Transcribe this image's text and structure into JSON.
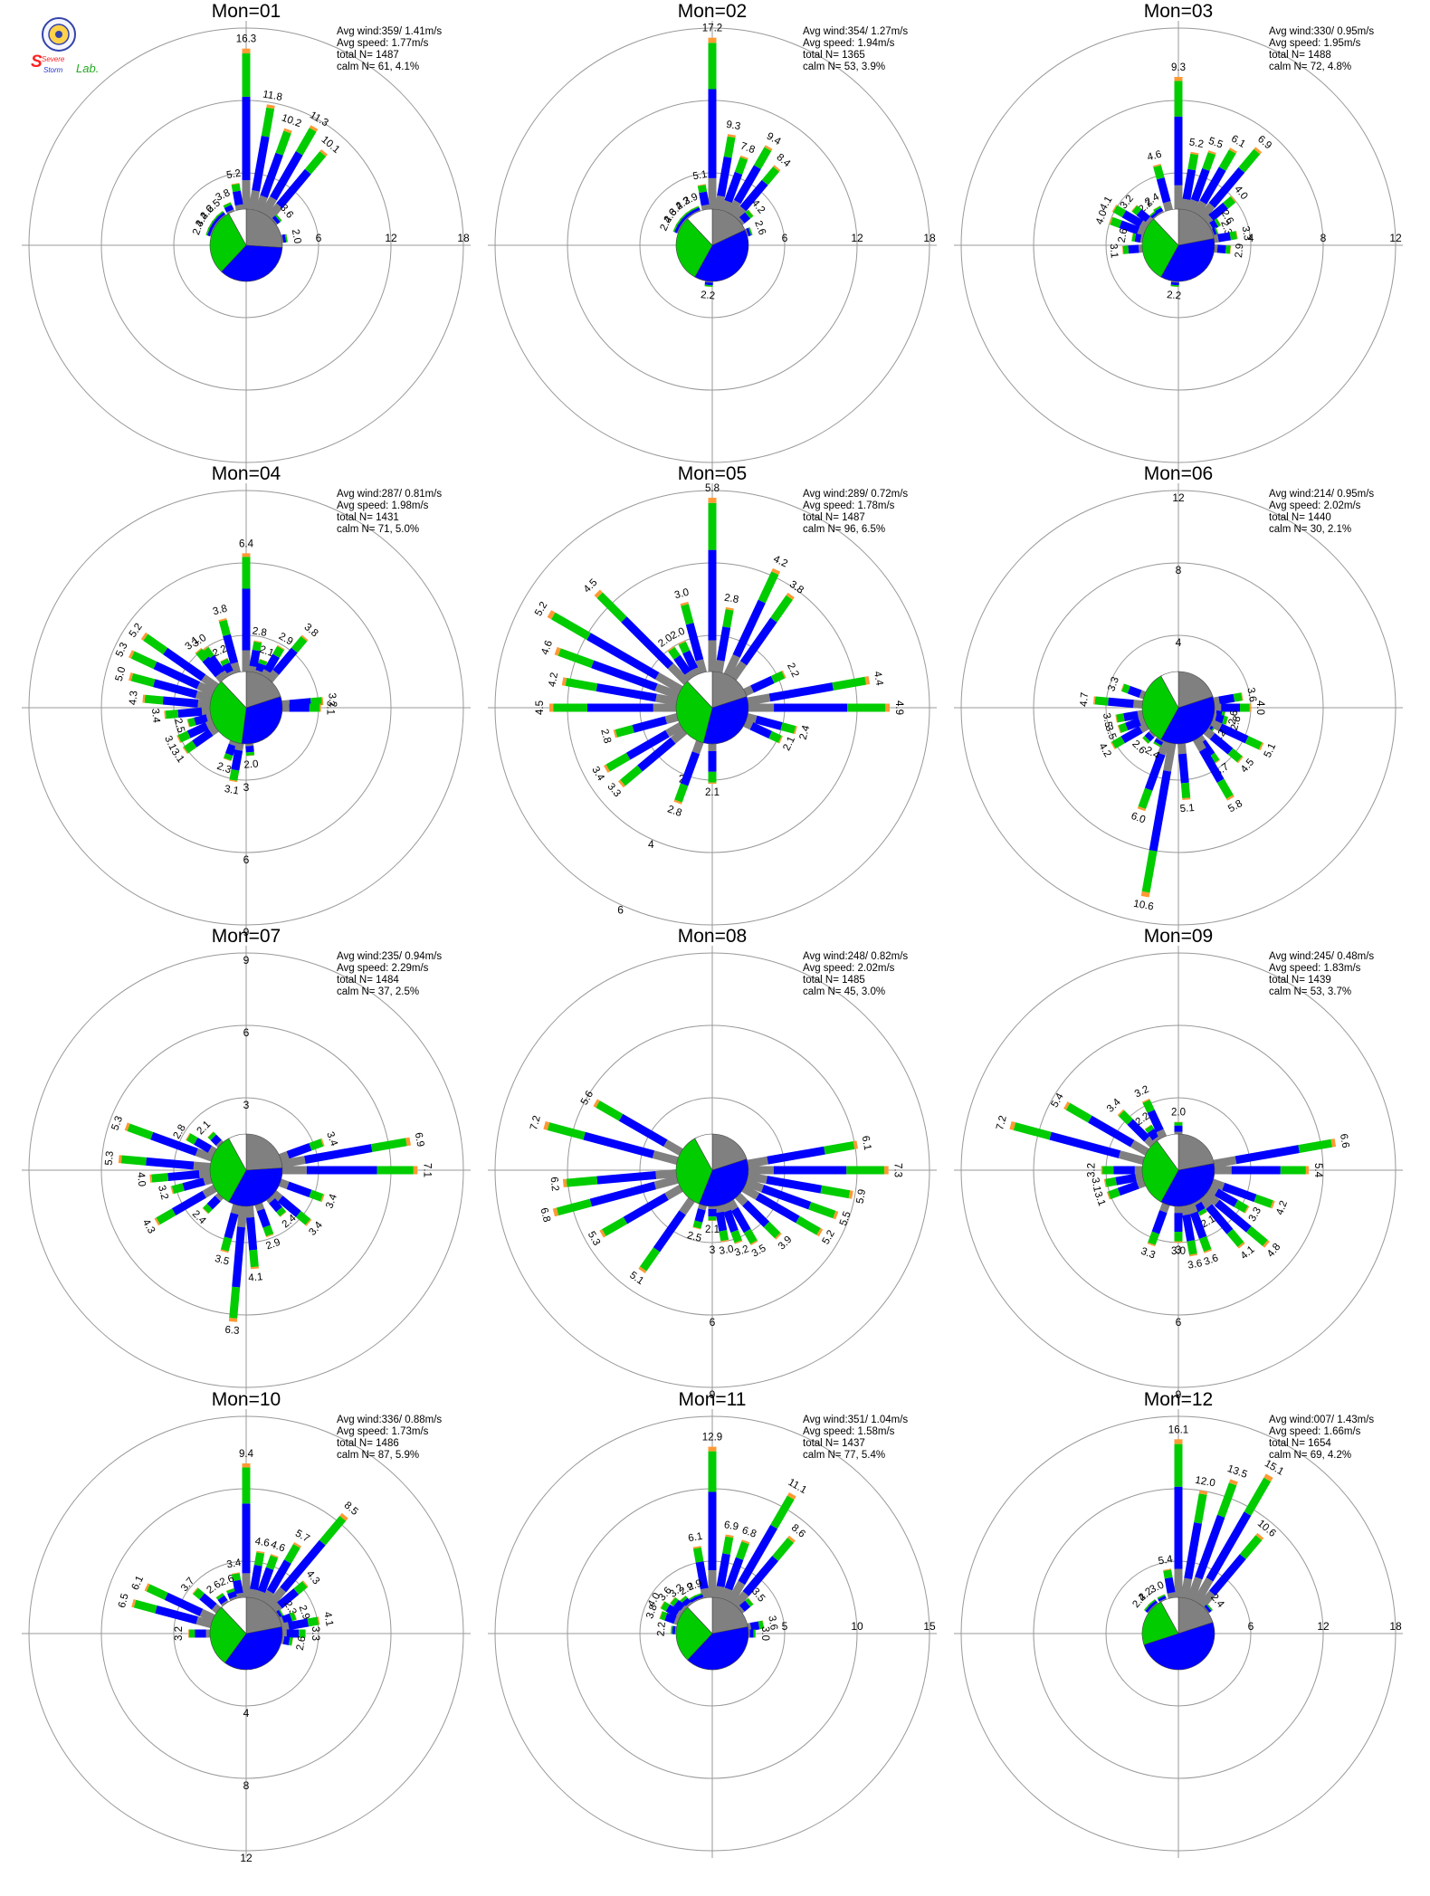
{
  "logo": {
    "text_a": "Severe",
    "text_b": "Storm",
    "text_c": "Lab."
  },
  "colors": {
    "speed_bins": [
      "#808080",
      "#0000ff",
      "#00cc00",
      "#ff9933",
      "#ff0000",
      "#9900cc"
    ],
    "pie": [
      "#808080",
      "#0000ff",
      "#00cc00",
      "#ffffff"
    ],
    "rings": "#999999"
  },
  "chart_data": [
    {
      "type": "wind-rose",
      "title": "Mon=01",
      "rmax": 18,
      "ring_labels": [
        "6",
        "12",
        "18"
      ],
      "ring_label_side": "right",
      "info": [
        "Avg wind:359/ 1.41m/s",
        "Avg speed: 1.77m/s",
        "total N=      1487",
        "calm N=     61,   4.1%"
      ],
      "pie": [
        0.26,
        0.36,
        0.3,
        0.08
      ],
      "sectors": [
        {
          "dir": 0,
          "value": 16.3
        },
        {
          "dir": 10,
          "value": 11.8
        },
        {
          "dir": 20,
          "value": 10.2
        },
        {
          "dir": 30,
          "value": 11.3
        },
        {
          "dir": 40,
          "value": 10.1
        },
        {
          "dir": 50,
          "value": 3.6
        },
        {
          "dir": 80,
          "value": 2.0
        },
        {
          "dir": 350,
          "value": 5.2
        },
        {
          "dir": 335,
          "value": 3.8
        },
        {
          "dir": 320,
          "value": 2.5
        },
        {
          "dir": 310,
          "value": 2.6
        },
        {
          "dir": 300,
          "value": 3.4
        },
        {
          "dir": 290,
          "value": 2.4
        }
      ]
    },
    {
      "type": "wind-rose",
      "title": "Mon=02",
      "rmax": 18,
      "ring_labels": [
        "6",
        "12",
        "18"
      ],
      "ring_label_side": "right",
      "info": [
        "Avg wind:354/ 1.27m/s",
        "Avg speed: 1.94m/s",
        "total N=      1365",
        "calm N=     53,   3.9%"
      ],
      "pie": [
        0.18,
        0.4,
        0.3,
        0.12
      ],
      "sectors": [
        {
          "dir": 0,
          "value": 17.2
        },
        {
          "dir": 10,
          "value": 9.3
        },
        {
          "dir": 20,
          "value": 7.8
        },
        {
          "dir": 30,
          "value": 9.4
        },
        {
          "dir": 40,
          "value": 8.4
        },
        {
          "dir": 50,
          "value": 4.2
        },
        {
          "dir": 70,
          "value": 2.6
        },
        {
          "dir": 350,
          "value": 5.1
        },
        {
          "dir": 335,
          "value": 2.9
        },
        {
          "dir": 325,
          "value": 2.3
        },
        {
          "dir": 315,
          "value": 3.4
        },
        {
          "dir": 305,
          "value": 2.6
        },
        {
          "dir": 295,
          "value": 2.4
        },
        {
          "dir": 185,
          "value": 2.2
        }
      ]
    },
    {
      "type": "wind-rose",
      "title": "Mon=03",
      "rmax": 12,
      "ring_labels": [
        "4",
        "8",
        "12"
      ],
      "ring_label_side": "right",
      "info": [
        "Avg wind:330/ 0.95m/s",
        "Avg speed: 1.95m/s",
        "total N=      1488",
        "calm N=     72,   4.8%"
      ],
      "pie": [
        0.22,
        0.36,
        0.3,
        0.12
      ],
      "sectors": [
        {
          "dir": 0,
          "value": 9.3
        },
        {
          "dir": 10,
          "value": 5.2
        },
        {
          "dir": 20,
          "value": 5.5
        },
        {
          "dir": 30,
          "value": 6.1
        },
        {
          "dir": 40,
          "value": 6.9
        },
        {
          "dir": 50,
          "value": 4.0
        },
        {
          "dir": 60,
          "value": 2.6
        },
        {
          "dir": 70,
          "value": 2.3
        },
        {
          "dir": 80,
          "value": 3.3
        },
        {
          "dir": 95,
          "value": 2.9
        },
        {
          "dir": 345,
          "value": 4.6
        },
        {
          "dir": 330,
          "value": 2.4
        },
        {
          "dir": 320,
          "value": 2.2
        },
        {
          "dir": 310,
          "value": 3.2
        },
        {
          "dir": 300,
          "value": 4.1
        },
        {
          "dir": 290,
          "value": 4.0
        },
        {
          "dir": 280,
          "value": 2.6
        },
        {
          "dir": 265,
          "value": 3.1
        },
        {
          "dir": 185,
          "value": 2.2
        }
      ]
    },
    {
      "type": "wind-rose",
      "title": "Mon=04",
      "rmax": 9,
      "ring_labels": [
        "3",
        "6",
        "9"
      ],
      "ring_label_side": "bottom",
      "info": [
        "Avg wind:287/ 0.81m/s",
        "Avg speed: 1.98m/s",
        "total N=      1431",
        "calm N=     71,   5.0%"
      ],
      "pie": [
        0.2,
        0.32,
        0.36,
        0.12
      ],
      "sectors": [
        {
          "dir": 0,
          "value": 6.4
        },
        {
          "dir": 10,
          "value": 2.8
        },
        {
          "dir": 20,
          "value": 2.1
        },
        {
          "dir": 30,
          "value": 2.9
        },
        {
          "dir": 40,
          "value": 3.8
        },
        {
          "dir": 85,
          "value": 3.2
        },
        {
          "dir": 90,
          "value": 3.1
        },
        {
          "dir": 345,
          "value": 3.8
        },
        {
          "dir": 335,
          "value": 2.2
        },
        {
          "dir": 325,
          "value": 3.0
        },
        {
          "dir": 320,
          "value": 3.1
        },
        {
          "dir": 305,
          "value": 5.2
        },
        {
          "dir": 295,
          "value": 5.3
        },
        {
          "dir": 285,
          "value": 5.0
        },
        {
          "dir": 275,
          "value": 4.3
        },
        {
          "dir": 265,
          "value": 3.4
        },
        {
          "dir": 255,
          "value": 2.5
        },
        {
          "dir": 245,
          "value": 3.1
        },
        {
          "dir": 235,
          "value": 3.1
        },
        {
          "dir": 200,
          "value": 2.3
        },
        {
          "dir": 190,
          "value": 3.1
        },
        {
          "dir": 175,
          "value": 2.0
        }
      ]
    },
    {
      "type": "wind-rose",
      "title": "Mon=05",
      "rmax": 6,
      "ring_labels": [
        "2",
        "4",
        "6"
      ],
      "ring_label_side": "bottom-left",
      "info": [
        "Avg wind:289/ 0.72m/s",
        "Avg speed: 1.78m/s",
        "total N=      1487",
        "calm N=     96,   6.5%"
      ],
      "pie": [
        0.2,
        0.34,
        0.34,
        0.12
      ],
      "sectors": [
        {
          "dir": 0,
          "value": 5.8
        },
        {
          "dir": 10,
          "value": 2.8
        },
        {
          "dir": 25,
          "value": 4.2
        },
        {
          "dir": 35,
          "value": 3.8
        },
        {
          "dir": 65,
          "value": 2.2
        },
        {
          "dir": 80,
          "value": 4.4
        },
        {
          "dir": 90,
          "value": 4.9
        },
        {
          "dir": 105,
          "value": 2.4
        },
        {
          "dir": 115,
          "value": 2.1
        },
        {
          "dir": 345,
          "value": 3.0
        },
        {
          "dir": 335,
          "value": 2.0
        },
        {
          "dir": 325,
          "value": 2.0
        },
        {
          "dir": 315,
          "value": 4.5
        },
        {
          "dir": 300,
          "value": 5.2
        },
        {
          "dir": 290,
          "value": 4.6
        },
        {
          "dir": 280,
          "value": 4.2
        },
        {
          "dir": 270,
          "value": 4.5
        },
        {
          "dir": 255,
          "value": 2.8
        },
        {
          "dir": 240,
          "value": 3.4
        },
        {
          "dir": 230,
          "value": 3.3
        },
        {
          "dir": 200,
          "value": 2.8
        },
        {
          "dir": 180,
          "value": 2.1
        }
      ]
    },
    {
      "type": "wind-rose",
      "title": "Mon=06",
      "rmax": 12,
      "ring_labels": [
        "4",
        "8",
        "12"
      ],
      "ring_label_side": "top",
      "info": [
        "Avg wind:214/ 0.95m/s",
        "Avg speed: 2.02m/s",
        "total N=      1440",
        "calm N=     30,   2.1%"
      ],
      "pie": [
        0.2,
        0.38,
        0.34,
        0.08
      ],
      "sectors": [
        {
          "dir": 80,
          "value": 3.6
        },
        {
          "dir": 90,
          "value": 4.0
        },
        {
          "dir": 100,
          "value": 2.6
        },
        {
          "dir": 105,
          "value": 2.8
        },
        {
          "dir": 115,
          "value": 5.1
        },
        {
          "dir": 125,
          "value": 2.2
        },
        {
          "dir": 130,
          "value": 4.5
        },
        {
          "dir": 145,
          "value": 3.7
        },
        {
          "dir": 150,
          "value": 5.8
        },
        {
          "dir": 175,
          "value": 5.1
        },
        {
          "dir": 190,
          "value": 10.6
        },
        {
          "dir": 200,
          "value": 6.0
        },
        {
          "dir": 210,
          "value": 2.4
        },
        {
          "dir": 225,
          "value": 2.6
        },
        {
          "dir": 240,
          "value": 4.2
        },
        {
          "dir": 250,
          "value": 3.5
        },
        {
          "dir": 260,
          "value": 3.5
        },
        {
          "dir": 275,
          "value": 4.7
        },
        {
          "dir": 290,
          "value": 3.3
        }
      ]
    },
    {
      "type": "wind-rose",
      "title": "Mon=07",
      "rmax": 9,
      "ring_labels": [
        "3",
        "6",
        "9"
      ],
      "ring_label_side": "top",
      "info": [
        "Avg wind:235/ 0.94m/s",
        "Avg speed: 2.29m/s",
        "total N=      1484",
        "calm N=     37,   2.5%"
      ],
      "pie": [
        0.24,
        0.34,
        0.34,
        0.08
      ],
      "sectors": [
        {
          "dir": 70,
          "value": 3.4
        },
        {
          "dir": 80,
          "value": 6.9
        },
        {
          "dir": 90,
          "value": 7.1
        },
        {
          "dir": 110,
          "value": 3.4
        },
        {
          "dir": 130,
          "value": 3.4
        },
        {
          "dir": 140,
          "value": 2.4
        },
        {
          "dir": 160,
          "value": 2.9
        },
        {
          "dir": 175,
          "value": 4.1
        },
        {
          "dir": 185,
          "value": 6.3
        },
        {
          "dir": 195,
          "value": 3.5
        },
        {
          "dir": 225,
          "value": 2.4
        },
        {
          "dir": 240,
          "value": 4.3
        },
        {
          "dir": 255,
          "value": 3.2
        },
        {
          "dir": 265,
          "value": 4.0
        },
        {
          "dir": 275,
          "value": 5.3
        },
        {
          "dir": 290,
          "value": 5.3
        },
        {
          "dir": 300,
          "value": 2.8
        },
        {
          "dir": 315,
          "value": 2.1
        }
      ]
    },
    {
      "type": "wind-rose",
      "title": "Mon=08",
      "rmax": 9,
      "ring_labels": [
        "3",
        "6",
        "9"
      ],
      "ring_label_side": "bottom",
      "info": [
        "Avg wind:248/ 0.82m/s",
        "Avg speed: 2.02m/s",
        "total N=      1485",
        "calm N=     45,   3.0%"
      ],
      "pie": [
        0.2,
        0.36,
        0.36,
        0.08
      ],
      "sectors": [
        {
          "dir": 80,
          "value": 6.1
        },
        {
          "dir": 90,
          "value": 7.3
        },
        {
          "dir": 100,
          "value": 5.9
        },
        {
          "dir": 110,
          "value": 5.5
        },
        {
          "dir": 120,
          "value": 5.2
        },
        {
          "dir": 135,
          "value": 3.9
        },
        {
          "dir": 150,
          "value": 3.5
        },
        {
          "dir": 160,
          "value": 3.2
        },
        {
          "dir": 170,
          "value": 3.0
        },
        {
          "dir": 180,
          "value": 2.1
        },
        {
          "dir": 195,
          "value": 2.5
        },
        {
          "dir": 215,
          "value": 5.1
        },
        {
          "dir": 240,
          "value": 5.3
        },
        {
          "dir": 255,
          "value": 6.8
        },
        {
          "dir": 265,
          "value": 6.2
        },
        {
          "dir": 285,
          "value": 7.2
        },
        {
          "dir": 300,
          "value": 5.6
        }
      ]
    },
    {
      "type": "wind-rose",
      "title": "Mon=09",
      "rmax": 9,
      "ring_labels": [
        "3",
        "6",
        "9"
      ],
      "ring_label_side": "bottom",
      "info": [
        "Avg wind:245/ 0.48m/s",
        "Avg speed: 1.83m/s",
        "total N=      1439",
        "calm N=     53,   3.7%"
      ],
      "pie": [
        0.22,
        0.36,
        0.32,
        0.1
      ],
      "sectors": [
        {
          "dir": 0,
          "value": 2.0
        },
        {
          "dir": 80,
          "value": 6.6
        },
        {
          "dir": 90,
          "value": 5.4
        },
        {
          "dir": 110,
          "value": 4.2
        },
        {
          "dir": 120,
          "value": 3.3
        },
        {
          "dir": 130,
          "value": 4.8
        },
        {
          "dir": 140,
          "value": 4.1
        },
        {
          "dir": 150,
          "value": 2.1
        },
        {
          "dir": 160,
          "value": 3.6
        },
        {
          "dir": 170,
          "value": 3.6
        },
        {
          "dir": 180,
          "value": 3.0
        },
        {
          "dir": 200,
          "value": 3.3
        },
        {
          "dir": 250,
          "value": 3.1
        },
        {
          "dir": 260,
          "value": 3.1
        },
        {
          "dir": 270,
          "value": 3.2
        },
        {
          "dir": 285,
          "value": 7.2
        },
        {
          "dir": 300,
          "value": 5.4
        },
        {
          "dir": 315,
          "value": 3.4
        },
        {
          "dir": 325,
          "value": 2.2
        },
        {
          "dir": 335,
          "value": 3.2
        }
      ]
    },
    {
      "type": "wind-rose",
      "title": "Mon=10",
      "rmax": 12,
      "ring_labels": [
        "4",
        "8",
        "12"
      ],
      "ring_label_side": "bottom",
      "info": [
        "Avg wind:336/ 0.88m/s",
        "Avg speed: 1.73m/s",
        "total N=      1486",
        "calm N=     87,   5.9%"
      ],
      "pie": [
        0.22,
        0.38,
        0.28,
        0.12
      ],
      "sectors": [
        {
          "dir": 0,
          "value": 9.4
        },
        {
          "dir": 10,
          "value": 4.6
        },
        {
          "dir": 20,
          "value": 4.6
        },
        {
          "dir": 30,
          "value": 5.7
        },
        {
          "dir": 40,
          "value": 8.5
        },
        {
          "dir": 50,
          "value": 4.3
        },
        {
          "dir": 60,
          "value": 2.3
        },
        {
          "dir": 70,
          "value": 2.9
        },
        {
          "dir": 80,
          "value": 4.1
        },
        {
          "dir": 90,
          "value": 3.3
        },
        {
          "dir": 100,
          "value": 2.6
        },
        {
          "dir": 350,
          "value": 3.4
        },
        {
          "dir": 340,
          "value": 2.6
        },
        {
          "dir": 325,
          "value": 2.6
        },
        {
          "dir": 310,
          "value": 3.7
        },
        {
          "dir": 295,
          "value": 6.1
        },
        {
          "dir": 285,
          "value": 6.5
        },
        {
          "dir": 270,
          "value": 3.2
        }
      ]
    },
    {
      "type": "wind-rose",
      "title": "Mon=11",
      "rmax": 15,
      "ring_labels": [
        "5",
        "10",
        "15"
      ],
      "ring_label_side": "right",
      "info": [
        "Avg wind:351/ 1.04m/s",
        "Avg speed: 1.58m/s",
        "total N=      1437",
        "calm N=     77,   5.4%"
      ],
      "pie": [
        0.22,
        0.4,
        0.26,
        0.12
      ],
      "sectors": [
        {
          "dir": 0,
          "value": 12.9
        },
        {
          "dir": 10,
          "value": 6.9
        },
        {
          "dir": 20,
          "value": 6.8
        },
        {
          "dir": 30,
          "value": 11.1
        },
        {
          "dir": 40,
          "value": 8.6
        },
        {
          "dir": 50,
          "value": 3.5
        },
        {
          "dir": 80,
          "value": 3.6
        },
        {
          "dir": 90,
          "value": 3.0
        },
        {
          "dir": 350,
          "value": 6.1
        },
        {
          "dir": 340,
          "value": 2.9
        },
        {
          "dir": 330,
          "value": 2.9
        },
        {
          "dir": 320,
          "value": 3.2
        },
        {
          "dir": 310,
          "value": 3.6
        },
        {
          "dir": 300,
          "value": 4.0
        },
        {
          "dir": 290,
          "value": 3.8
        },
        {
          "dir": 275,
          "value": 2.2
        }
      ]
    },
    {
      "type": "wind-rose",
      "title": "Mon=12",
      "rmax": 18,
      "ring_labels": [
        "6",
        "12",
        "18"
      ],
      "ring_label_side": "right",
      "info": [
        "Avg wind:007/ 1.43m/s",
        "Avg speed: 1.66m/s",
        "total N=      1654",
        "calm N=     69,   4.2%"
      ],
      "pie": [
        0.2,
        0.5,
        0.22,
        0.08
      ],
      "sectors": [
        {
          "dir": 0,
          "value": 16.1
        },
        {
          "dir": 10,
          "value": 12.0
        },
        {
          "dir": 20,
          "value": 13.5
        },
        {
          "dir": 30,
          "value": 15.1
        },
        {
          "dir": 40,
          "value": 10.6
        },
        {
          "dir": 50,
          "value": 2.4
        },
        {
          "dir": 350,
          "value": 5.4
        },
        {
          "dir": 335,
          "value": 3.0
        },
        {
          "dir": 320,
          "value": 2.2
        },
        {
          "dir": 310,
          "value": 2.4
        }
      ]
    }
  ]
}
